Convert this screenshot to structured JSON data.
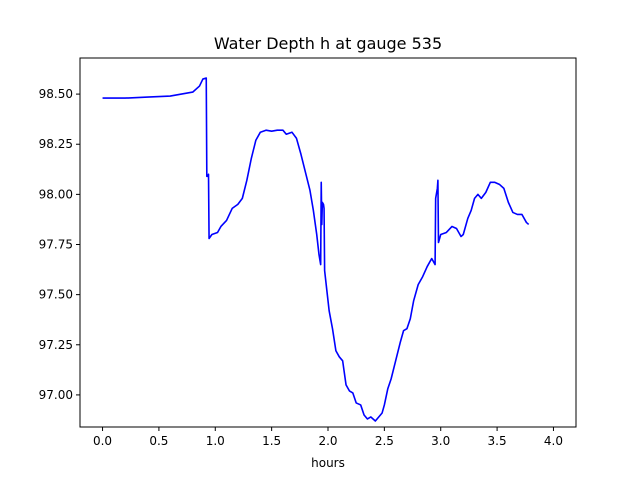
{
  "chart_data": {
    "type": "line",
    "title": "Water Depth h at gauge 535",
    "xlabel": "hours",
    "ylabel": "",
    "xlim": [
      -0.2,
      4.2
    ],
    "ylim": [
      96.84,
      98.68
    ],
    "xticks": [
      0.0,
      0.5,
      1.0,
      1.5,
      2.0,
      2.5,
      3.0,
      3.5,
      4.0
    ],
    "xtick_labels": [
      "0.0",
      "0.5",
      "1.0",
      "1.5",
      "2.0",
      "2.5",
      "3.0",
      "3.5",
      "4.0"
    ],
    "yticks": [
      97.0,
      97.25,
      97.5,
      97.75,
      98.0,
      98.25,
      98.5
    ],
    "ytick_labels": [
      "97.00",
      "97.25",
      "97.50",
      "97.75",
      "98.00",
      "98.25",
      "98.50"
    ],
    "grid": false,
    "series": [
      {
        "color": "#0000ff",
        "points": [
          [
            0.0,
            98.48
          ],
          [
            0.2,
            98.48
          ],
          [
            0.4,
            98.485
          ],
          [
            0.6,
            98.49
          ],
          [
            0.7,
            98.5
          ],
          [
            0.8,
            98.51
          ],
          [
            0.86,
            98.54
          ],
          [
            0.89,
            98.575
          ],
          [
            0.92,
            98.58
          ],
          [
            0.925,
            98.09
          ],
          [
            0.935,
            98.09
          ],
          [
            0.94,
            98.1
          ],
          [
            0.945,
            97.78
          ],
          [
            0.97,
            97.8
          ],
          [
            1.02,
            97.81
          ],
          [
            1.05,
            97.84
          ],
          [
            1.1,
            97.87
          ],
          [
            1.15,
            97.93
          ],
          [
            1.2,
            97.95
          ],
          [
            1.24,
            97.98
          ],
          [
            1.28,
            98.07
          ],
          [
            1.32,
            98.18
          ],
          [
            1.36,
            98.27
          ],
          [
            1.4,
            98.31
          ],
          [
            1.45,
            98.32
          ],
          [
            1.5,
            98.315
          ],
          [
            1.55,
            98.32
          ],
          [
            1.6,
            98.32
          ],
          [
            1.63,
            98.3
          ],
          [
            1.68,
            98.31
          ],
          [
            1.72,
            98.28
          ],
          [
            1.76,
            98.2
          ],
          [
            1.8,
            98.11
          ],
          [
            1.84,
            98.02
          ],
          [
            1.87,
            97.92
          ],
          [
            1.9,
            97.8
          ],
          [
            1.92,
            97.7
          ],
          [
            1.935,
            97.65
          ],
          [
            1.94,
            98.06
          ],
          [
            1.945,
            97.85
          ],
          [
            1.95,
            97.96
          ],
          [
            1.96,
            97.95
          ],
          [
            1.965,
            97.93
          ],
          [
            1.97,
            97.62
          ],
          [
            1.99,
            97.52
          ],
          [
            2.01,
            97.42
          ],
          [
            2.04,
            97.33
          ],
          [
            2.07,
            97.22
          ],
          [
            2.1,
            97.19
          ],
          [
            2.13,
            97.17
          ],
          [
            2.16,
            97.05
          ],
          [
            2.19,
            97.02
          ],
          [
            2.22,
            97.01
          ],
          [
            2.25,
            96.96
          ],
          [
            2.29,
            96.95
          ],
          [
            2.32,
            96.9
          ],
          [
            2.35,
            96.88
          ],
          [
            2.38,
            96.89
          ],
          [
            2.42,
            96.87
          ],
          [
            2.45,
            96.89
          ],
          [
            2.48,
            96.91
          ],
          [
            2.5,
            96.95
          ],
          [
            2.53,
            97.03
          ],
          [
            2.56,
            97.08
          ],
          [
            2.6,
            97.17
          ],
          [
            2.64,
            97.26
          ],
          [
            2.67,
            97.32
          ],
          [
            2.7,
            97.33
          ],
          [
            2.73,
            97.38
          ],
          [
            2.76,
            97.47
          ],
          [
            2.8,
            97.55
          ],
          [
            2.84,
            97.59
          ],
          [
            2.88,
            97.64
          ],
          [
            2.92,
            97.68
          ],
          [
            2.95,
            97.65
          ],
          [
            2.955,
            97.98
          ],
          [
            2.97,
            98.03
          ],
          [
            2.975,
            98.07
          ],
          [
            2.98,
            97.76
          ],
          [
            3.0,
            97.8
          ],
          [
            3.05,
            97.81
          ],
          [
            3.1,
            97.84
          ],
          [
            3.14,
            97.83
          ],
          [
            3.18,
            97.79
          ],
          [
            3.2,
            97.8
          ],
          [
            3.24,
            97.88
          ],
          [
            3.27,
            97.92
          ],
          [
            3.3,
            97.98
          ],
          [
            3.33,
            98.0
          ],
          [
            3.36,
            97.98
          ],
          [
            3.4,
            98.01
          ],
          [
            3.44,
            98.06
          ],
          [
            3.48,
            98.06
          ],
          [
            3.52,
            98.05
          ],
          [
            3.56,
            98.03
          ],
          [
            3.6,
            97.96
          ],
          [
            3.64,
            97.91
          ],
          [
            3.68,
            97.9
          ],
          [
            3.72,
            97.9
          ],
          [
            3.76,
            97.86
          ],
          [
            3.78,
            97.85
          ]
        ]
      }
    ]
  }
}
